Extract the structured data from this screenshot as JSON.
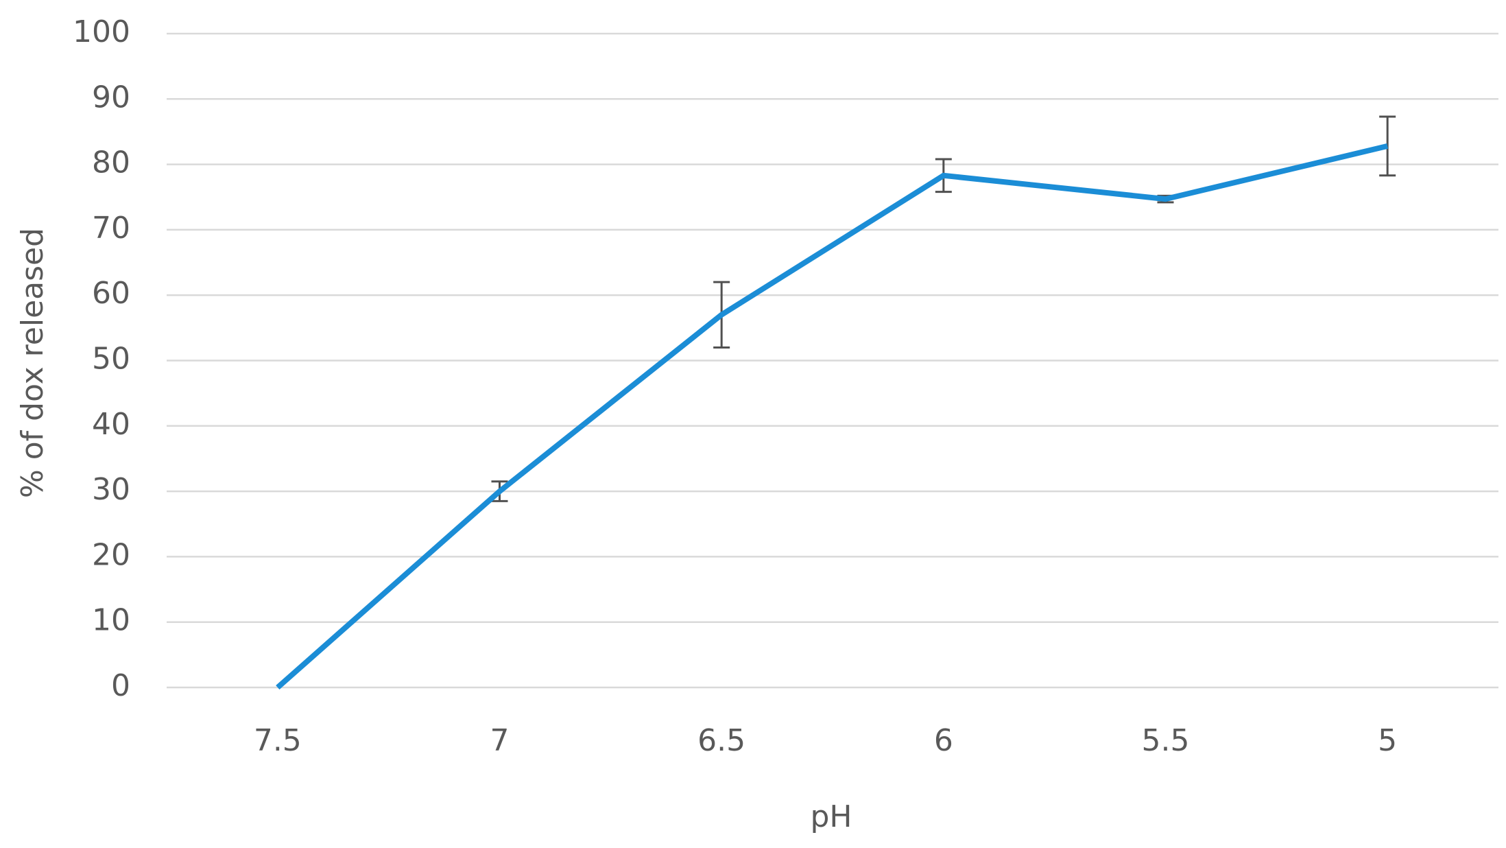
{
  "chart_data": {
    "type": "line",
    "x_label": "pH",
    "y_label": "% of dox released",
    "categories": [
      "7.5",
      "7",
      "6.5",
      "6",
      "5.5",
      "5"
    ],
    "series": [
      {
        "color": "#1b8dd6",
        "values": [
          0,
          30,
          57,
          78.3,
          74.7,
          82.8
        ],
        "errors": [
          null,
          1.5,
          5,
          2.5,
          0.5,
          4.5
        ]
      }
    ],
    "ylim": [
      0,
      100
    ],
    "yticks": [
      0,
      10,
      20,
      30,
      40,
      50,
      60,
      70,
      80,
      90,
      100
    ],
    "grid": true
  }
}
